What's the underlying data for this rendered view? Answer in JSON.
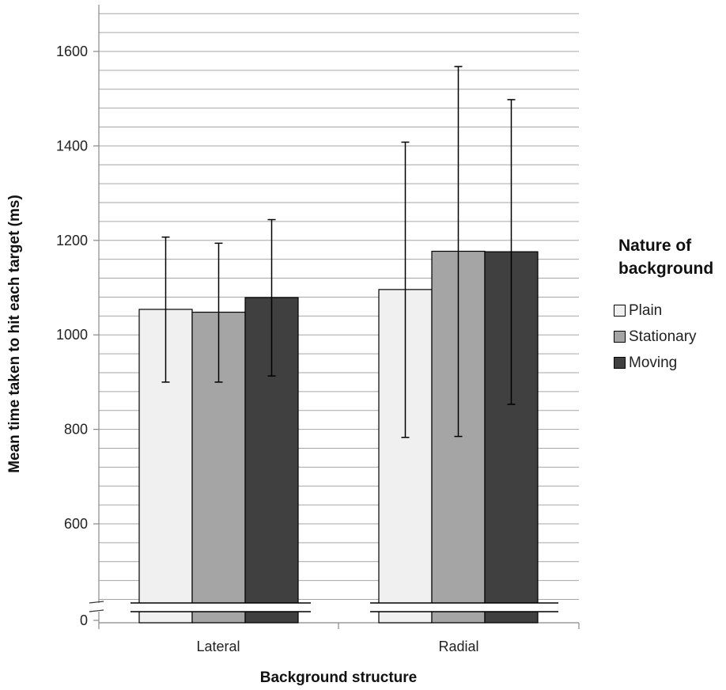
{
  "chart_data": {
    "type": "bar",
    "categories": [
      "Lateral",
      "Radial"
    ],
    "series": [
      {
        "name": "Plain",
        "color": "#f0f0f0",
        "values": [
          1054,
          1096
        ],
        "error_low": [
          900,
          783
        ],
        "error_high": [
          1207,
          1408
        ]
      },
      {
        "name": "Stationary",
        "color": "#a5a5a5",
        "values": [
          1048,
          1177
        ],
        "error_low": [
          900,
          785
        ],
        "error_high": [
          1194,
          1568
        ]
      },
      {
        "name": "Moving",
        "color": "#404040",
        "values": [
          1079,
          1176
        ],
        "error_low": [
          913,
          853
        ],
        "error_high": [
          1244,
          1498
        ]
      }
    ],
    "xlabel": "Background structure",
    "ylabel": "Mean time taken to hit each target (ms)",
    "yticks": [
      "0",
      "600",
      "800",
      "1000",
      "1200",
      "1400",
      "1600"
    ],
    "ylim": [
      500,
      1700
    ],
    "axis_break": true,
    "gridlines": true,
    "legend": {
      "title_line1": "Nature of",
      "title_line2": "background",
      "position": "right"
    }
  }
}
